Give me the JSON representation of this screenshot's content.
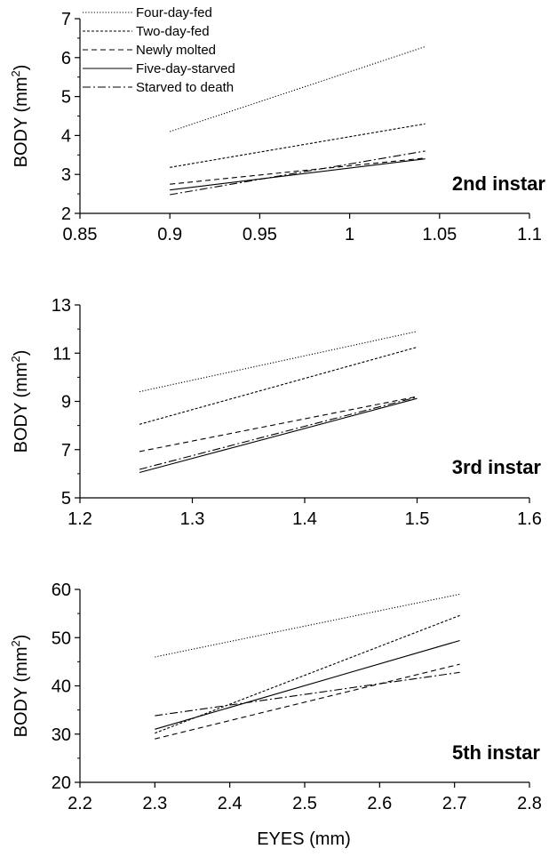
{
  "figure": {
    "xlabel": "EYES (mm)"
  },
  "legend": [
    {
      "label": "Four-day-fed",
      "style": "dotted"
    },
    {
      "label": "Two-day-fed",
      "style": "short-dash"
    },
    {
      "label": "Newly molted",
      "style": "dash"
    },
    {
      "label": "Five-day-starved",
      "style": "solid"
    },
    {
      "label": "Starved to death",
      "style": "dash-dot"
    }
  ],
  "chart_data": [
    {
      "type": "line",
      "annotation": "2nd instar",
      "ylabel": "BODY (mm²)",
      "xlabel": "",
      "xlim": [
        0.85,
        1.1
      ],
      "ylim": [
        2,
        7
      ],
      "xticks": [
        "0.85",
        "0.9",
        "0.95",
        "1",
        "1.05",
        "1.1"
      ],
      "yticks": [
        "2",
        "3",
        "4",
        "5",
        "6",
        "7"
      ],
      "series": [
        {
          "name": "Four-day-fed",
          "x": [
            0.9,
            1.042
          ],
          "y": [
            4.1,
            6.28
          ]
        },
        {
          "name": "Two-day-fed",
          "x": [
            0.9,
            1.042
          ],
          "y": [
            3.18,
            4.3
          ]
        },
        {
          "name": "Newly molted",
          "x": [
            0.9,
            1.042
          ],
          "y": [
            2.75,
            3.42
          ]
        },
        {
          "name": "Five-day-starved",
          "x": [
            0.9,
            1.042
          ],
          "y": [
            2.6,
            3.4
          ]
        },
        {
          "name": "Starved to death",
          "x": [
            0.9,
            1.042
          ],
          "y": [
            2.48,
            3.6
          ]
        }
      ]
    },
    {
      "type": "line",
      "annotation": "3rd instar",
      "ylabel": "BODY (mm²)",
      "xlabel": "",
      "xlim": [
        1.2,
        1.6
      ],
      "ylim": [
        5,
        13
      ],
      "xticks": [
        "1.2",
        "1.3",
        "1.4",
        "1.5",
        "1.6"
      ],
      "yticks": [
        "5",
        "7",
        "9",
        "11",
        "13"
      ],
      "series": [
        {
          "name": "Four-day-fed",
          "x": [
            1.253,
            1.5
          ],
          "y": [
            9.4,
            11.9
          ]
        },
        {
          "name": "Two-day-fed",
          "x": [
            1.253,
            1.5
          ],
          "y": [
            8.05,
            11.25
          ]
        },
        {
          "name": "Newly molted",
          "x": [
            1.253,
            1.5
          ],
          "y": [
            6.92,
            9.2
          ]
        },
        {
          "name": "Five-day-starved",
          "x": [
            1.253,
            1.5
          ],
          "y": [
            6.05,
            9.12
          ]
        },
        {
          "name": "Starved to death",
          "x": [
            1.253,
            1.5
          ],
          "y": [
            6.18,
            9.18
          ]
        }
      ]
    },
    {
      "type": "line",
      "annotation": "5th instar",
      "ylabel": "BODY (mm²)",
      "xlabel": "EYES (mm)",
      "xlim": [
        2.2,
        2.8
      ],
      "ylim": [
        20,
        60
      ],
      "xticks": [
        "2.2",
        "2.3",
        "2.4",
        "2.5",
        "2.6",
        "2.7",
        "2.8"
      ],
      "yticks": [
        "20",
        "30",
        "40",
        "50",
        "60"
      ],
      "series": [
        {
          "name": "Four-day-fed",
          "x": [
            2.3,
            2.707
          ],
          "y": [
            46,
            59
          ]
        },
        {
          "name": "Two-day-fed",
          "x": [
            2.3,
            2.707
          ],
          "y": [
            30.2,
            54.6
          ]
        },
        {
          "name": "Newly molted",
          "x": [
            2.3,
            2.707
          ],
          "y": [
            29,
            44.5
          ]
        },
        {
          "name": "Five-day-starved",
          "x": [
            2.3,
            2.707
          ],
          "y": [
            31,
            49.4
          ]
        },
        {
          "name": "Starved to death",
          "x": [
            2.3,
            2.707
          ],
          "y": [
            33.8,
            42.8
          ]
        }
      ]
    }
  ]
}
